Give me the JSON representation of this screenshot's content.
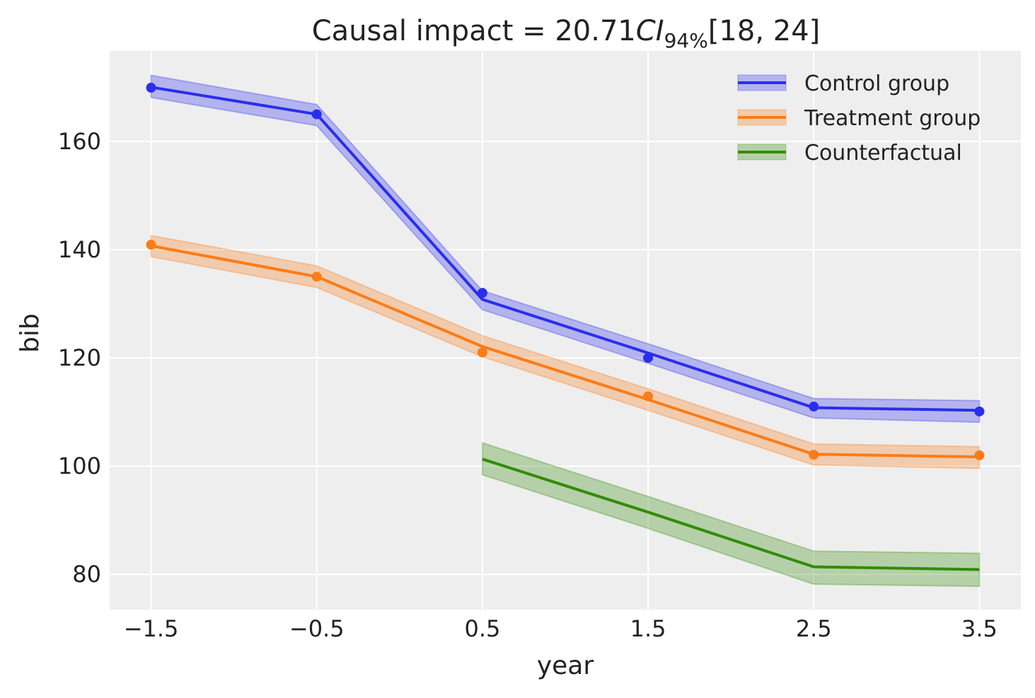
{
  "chart_data": {
    "type": "line",
    "title": {
      "prefix": "Causal impact = 20.71",
      "ci_symbol": "CI",
      "ci_subscript": "94%",
      "interval": "[18, 24]"
    },
    "xlabel": "year",
    "ylabel": "bib",
    "xlim": [
      -1.75,
      3.75
    ],
    "ylim": [
      73.5,
      176.7
    ],
    "xticks": [
      -1.5,
      -0.5,
      0.5,
      1.5,
      2.5,
      3.5
    ],
    "xtick_labels": [
      "−1.5",
      "−0.5",
      "0.5",
      "1.5",
      "2.5",
      "3.5"
    ],
    "yticks": [
      80,
      100,
      120,
      140,
      160
    ],
    "ytick_labels": [
      "80",
      "100",
      "120",
      "140",
      "160"
    ],
    "grid": true,
    "background": "#eeeeee",
    "legend_position": "top-right",
    "series": [
      {
        "name": "Control group",
        "color": "#2a2eec",
        "x": [
          -1.5,
          -0.5,
          0.5,
          1.5,
          2.5,
          3.5
        ],
        "mean": [
          170.0,
          165.0,
          130.8,
          120.9,
          110.8,
          110.3
        ],
        "lower": [
          168.1,
          162.9,
          128.9,
          119.0,
          108.9,
          108.1
        ],
        "upper": [
          172.2,
          166.8,
          132.4,
          122.6,
          112.5,
          112.1
        ],
        "observed": [
          169.9,
          165.0,
          132.0,
          120.0,
          111.0,
          110.1
        ]
      },
      {
        "name": "Treatment group",
        "color": "#fa7c17",
        "x": [
          -1.5,
          -0.5,
          0.5,
          1.5,
          2.5,
          3.5
        ],
        "mean": [
          140.7,
          135.0,
          122.1,
          112.3,
          102.2,
          101.7
        ],
        "lower": [
          138.7,
          133.0,
          120.2,
          110.3,
          100.2,
          99.6
        ],
        "upper": [
          142.6,
          137.0,
          124.1,
          114.3,
          104.1,
          103.6
        ],
        "observed": [
          140.9,
          135.0,
          121.0,
          112.9,
          102.1,
          102.0
        ]
      },
      {
        "name": "Counterfactual",
        "color": "#328c06",
        "x": [
          0.5,
          1.5,
          2.5,
          3.5
        ],
        "mean": [
          101.3,
          91.5,
          81.4,
          80.9
        ],
        "lower": [
          98.4,
          88.5,
          78.2,
          77.8
        ],
        "upper": [
          104.3,
          94.4,
          84.3,
          83.9
        ],
        "observed": null
      }
    ]
  }
}
